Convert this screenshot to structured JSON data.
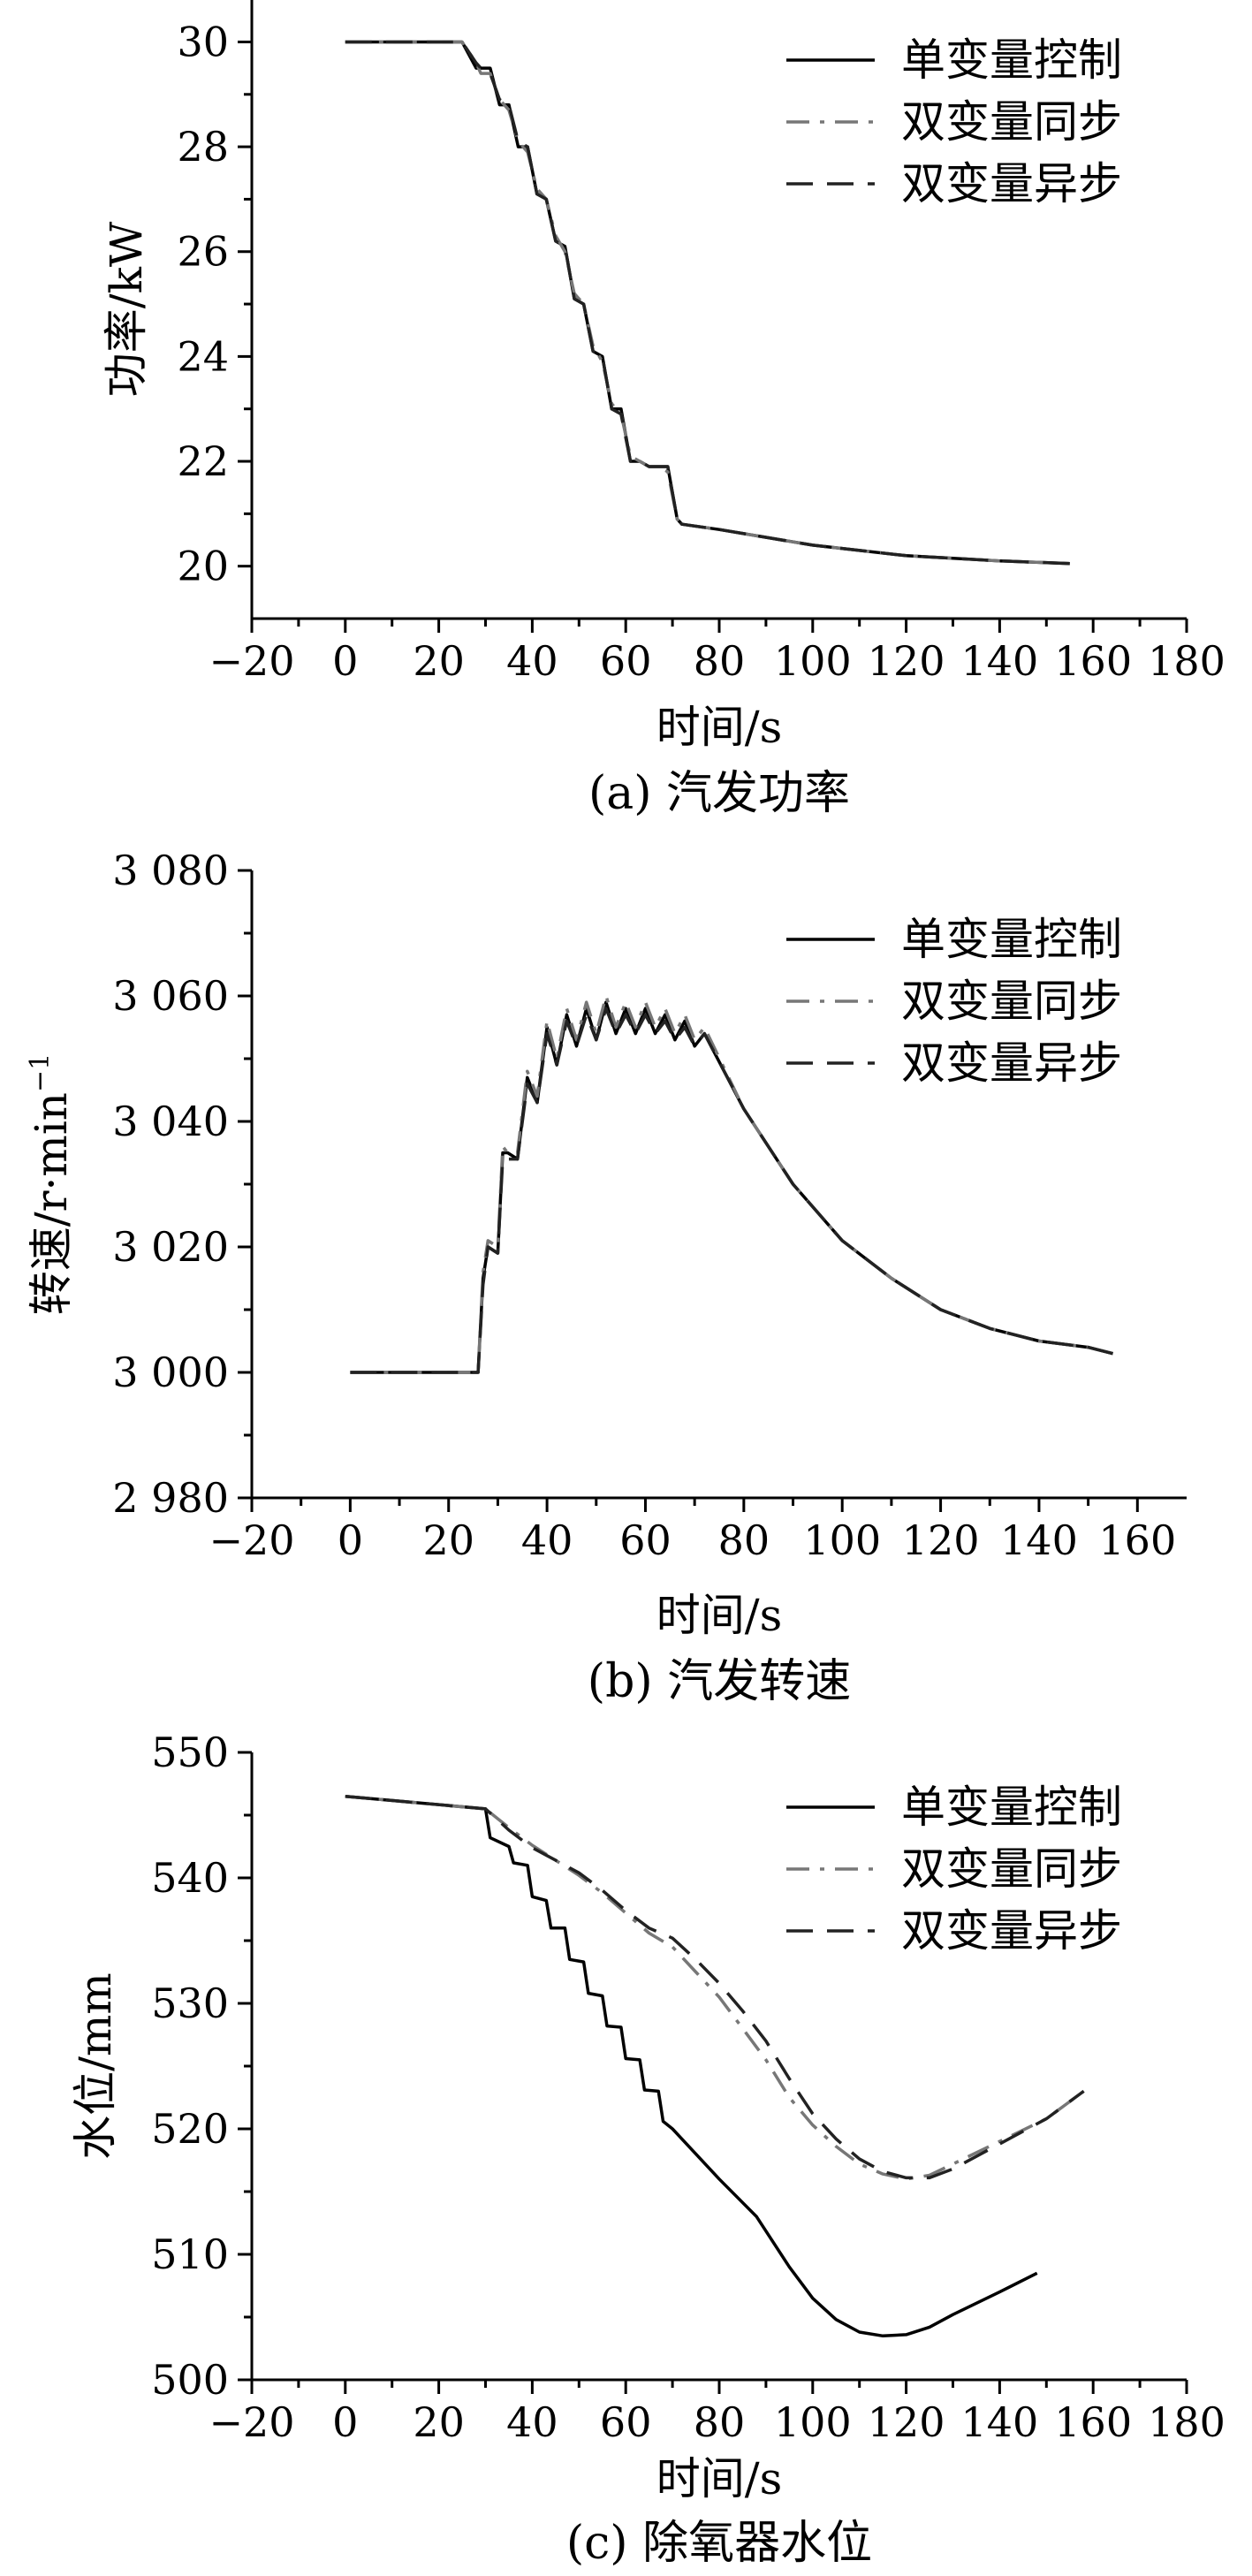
{
  "chart_data": [
    {
      "type": "line",
      "caption": "(a) 汽发功率",
      "xlabel": "时间/s",
      "ylabel": "功率/kW",
      "xlim": [
        -20,
        180
      ],
      "ylim": [
        19,
        30.8
      ],
      "xticks": [
        -20,
        0,
        20,
        40,
        60,
        80,
        100,
        120,
        140,
        160,
        180
      ],
      "xtick_labels": [
        "−20",
        "0",
        "20",
        "40",
        "60",
        "80",
        "100",
        "120",
        "140",
        "160",
        "180"
      ],
      "yticks": [
        20,
        22,
        24,
        26,
        28,
        30
      ],
      "ytick_labels": [
        "20",
        "22",
        "24",
        "26",
        "28",
        "30"
      ],
      "legend_position": "top-right",
      "series": [
        {
          "name": "单变量控制",
          "color": "#000000",
          "dash": "solid",
          "x": [
            0,
            25,
            28,
            29,
            31,
            33,
            35,
            37,
            39,
            41,
            43,
            45,
            47,
            49,
            51,
            53,
            55,
            57,
            59,
            61,
            63,
            65,
            67,
            69,
            71,
            72,
            80,
            100,
            120,
            140,
            155
          ],
          "y": [
            30,
            30,
            29.5,
            29.5,
            29.5,
            28.8,
            28.8,
            28.0,
            28.0,
            27.1,
            27.0,
            26.2,
            26.1,
            25.1,
            25.0,
            24.1,
            24.0,
            23.0,
            23.0,
            22.0,
            22.0,
            21.9,
            21.9,
            21.9,
            20.9,
            20.8,
            20.7,
            20.4,
            20.2,
            20.1,
            20.05
          ]
        },
        {
          "name": "双变量同步",
          "color": "#777777",
          "dash": "dashdot",
          "x": [
            0,
            25,
            28,
            29,
            31,
            33,
            35,
            37,
            39,
            41,
            43,
            45,
            47,
            49,
            51,
            53,
            55,
            57,
            59,
            61,
            63,
            65,
            67,
            69,
            71,
            72,
            80,
            100,
            120,
            140,
            155
          ],
          "y": [
            30,
            30,
            29.6,
            29.4,
            29.4,
            28.9,
            28.7,
            28.1,
            27.9,
            27.2,
            27.0,
            26.3,
            26.0,
            25.2,
            25.0,
            24.2,
            23.9,
            23.1,
            22.9,
            22.1,
            22.0,
            21.9,
            21.9,
            21.8,
            20.9,
            20.8,
            20.7,
            20.4,
            20.2,
            20.1,
            20.05
          ]
        },
        {
          "name": "双变量异步",
          "color": "#222222",
          "dash": "dashed",
          "x": [
            0,
            25,
            28,
            29,
            31,
            33,
            35,
            37,
            39,
            41,
            43,
            45,
            47,
            49,
            51,
            53,
            55,
            57,
            59,
            61,
            63,
            65,
            67,
            69,
            71,
            72,
            80,
            100,
            120,
            140,
            155
          ],
          "y": [
            30,
            30,
            29.6,
            29.5,
            29.4,
            28.9,
            28.8,
            28.1,
            28.0,
            27.1,
            27.0,
            26.2,
            26.1,
            25.1,
            25.0,
            24.1,
            24.0,
            23.0,
            22.9,
            22.0,
            22.0,
            21.9,
            21.9,
            21.9,
            20.9,
            20.8,
            20.7,
            20.4,
            20.2,
            20.1,
            20.05
          ]
        }
      ]
    },
    {
      "type": "line",
      "caption": "(b) 汽发转速",
      "xlabel": "时间/s",
      "ylabel": "转速/r·min",
      "ylabel_sup": "−1",
      "xlim": [
        -20,
        170
      ],
      "ylim": [
        2980,
        3080
      ],
      "xticks": [
        -20,
        0,
        20,
        40,
        60,
        80,
        100,
        120,
        140,
        160
      ],
      "xtick_labels": [
        "−20",
        "0",
        "20",
        "40",
        "60",
        "80",
        "100",
        "120",
        "140",
        "160"
      ],
      "yticks": [
        2980,
        3000,
        3020,
        3040,
        3060,
        3080
      ],
      "ytick_labels": [
        "2 980",
        "3 000",
        "3 020",
        "3 040",
        "3 060",
        "3 080"
      ],
      "legend_position": "top-right",
      "series": [
        {
          "name": "单变量控制",
          "color": "#000000",
          "dash": "solid",
          "x": [
            0,
            26,
            27,
            28,
            30,
            31,
            32,
            34,
            36,
            38,
            40,
            42,
            44,
            46,
            48,
            50,
            52,
            54,
            56,
            58,
            60,
            62,
            64,
            66,
            68,
            70,
            72,
            80,
            90,
            100,
            110,
            120,
            130,
            140,
            150,
            155
          ],
          "y": [
            3000,
            3000,
            3015,
            3020,
            3019,
            3035,
            3035,
            3034,
            3047,
            3043,
            3055,
            3049,
            3057,
            3052,
            3058,
            3053,
            3059,
            3054,
            3058,
            3054,
            3058,
            3054,
            3057,
            3053,
            3056,
            3052,
            3054,
            3042,
            3030,
            3021,
            3015,
            3010,
            3007,
            3005,
            3004,
            3003
          ]
        },
        {
          "name": "双变量同步",
          "color": "#777777",
          "dash": "dashdot",
          "x": [
            0,
            26,
            27,
            28,
            30,
            31,
            32,
            34,
            36,
            38,
            40,
            42,
            44,
            46,
            48,
            50,
            52,
            54,
            56,
            58,
            60,
            62,
            64,
            66,
            68,
            70,
            72,
            80,
            90,
            100,
            110,
            120,
            130,
            140,
            150,
            155
          ],
          "y": [
            3000,
            3000,
            3016,
            3021,
            3020,
            3036,
            3035,
            3035,
            3048,
            3044,
            3056,
            3050,
            3058,
            3053,
            3059,
            3054,
            3060,
            3055,
            3059,
            3055,
            3059,
            3055,
            3058,
            3054,
            3057,
            3053,
            3055,
            3042,
            3030,
            3021,
            3015,
            3010,
            3007,
            3005,
            3004,
            3003
          ]
        },
        {
          "name": "双变量异步",
          "color": "#222222",
          "dash": "dashed",
          "x": [
            0,
            26,
            27,
            28,
            30,
            31,
            32,
            34,
            36,
            38,
            40,
            42,
            44,
            46,
            48,
            50,
            52,
            54,
            56,
            58,
            60,
            62,
            64,
            66,
            68,
            70,
            72,
            80,
            90,
            100,
            110,
            120,
            130,
            140,
            150,
            155
          ],
          "y": [
            3000,
            3000,
            3014,
            3020,
            3019,
            3034,
            3034,
            3034,
            3046,
            3043,
            3054,
            3049,
            3056,
            3052,
            3057,
            3053,
            3058,
            3054,
            3057,
            3054,
            3057,
            3054,
            3056,
            3053,
            3055,
            3052,
            3054,
            3042,
            3030,
            3021,
            3015,
            3010,
            3007,
            3005,
            3004,
            3003
          ]
        }
      ]
    },
    {
      "type": "line",
      "caption": "(c) 除氧器水位",
      "xlabel": "时间/s",
      "ylabel": "水位/mm",
      "xlim": [
        -20,
        180
      ],
      "ylim": [
        500,
        550
      ],
      "xticks": [
        -20,
        0,
        20,
        40,
        60,
        80,
        100,
        120,
        140,
        160,
        180
      ],
      "xtick_labels": [
        "−20",
        "0",
        "20",
        "40",
        "60",
        "80",
        "100",
        "120",
        "140",
        "160",
        "180"
      ],
      "yticks": [
        500,
        510,
        520,
        530,
        540,
        550
      ],
      "ytick_labels": [
        "500",
        "510",
        "520",
        "530",
        "540",
        "550"
      ],
      "legend_position": "top-right",
      "series": [
        {
          "name": "单变量控制",
          "color": "#000000",
          "dash": "solid",
          "x": [
            0,
            30,
            31,
            35,
            36,
            39,
            40,
            43,
            44,
            47,
            48,
            51,
            52,
            55,
            56,
            59,
            60,
            63,
            64,
            67,
            68,
            70,
            80,
            88,
            95,
            100,
            105,
            110,
            115,
            120,
            125,
            130,
            140,
            148
          ],
          "y": [
            546.5,
            545.5,
            543.2,
            542.5,
            541.2,
            541.0,
            538.5,
            538.2,
            536.0,
            536.0,
            533.5,
            533.3,
            530.8,
            530.6,
            528.2,
            528.1,
            525.6,
            525.5,
            523.1,
            523.0,
            520.6,
            520.0,
            516.0,
            513.0,
            509.0,
            506.5,
            504.8,
            503.8,
            503.5,
            503.6,
            504.2,
            505.2,
            507.0,
            508.5
          ]
        },
        {
          "name": "双变量同步",
          "color": "#777777",
          "dash": "dashdot",
          "x": [
            0,
            30,
            35,
            40,
            45,
            50,
            55,
            60,
            65,
            70,
            75,
            80,
            85,
            90,
            95,
            100,
            105,
            110,
            115,
            120,
            125,
            130,
            140,
            150,
            158
          ],
          "y": [
            546.5,
            545.5,
            544.0,
            542.6,
            541.4,
            540.2,
            538.8,
            537.2,
            535.6,
            534.5,
            532.5,
            530.5,
            528.0,
            525.5,
            522.5,
            520.3,
            518.6,
            517.2,
            516.4,
            516.0,
            516.3,
            517.2,
            519.0,
            520.8,
            523.0
          ]
        },
        {
          "name": "双变量异步",
          "color": "#222222",
          "dash": "dashed",
          "x": [
            0,
            30,
            35,
            40,
            45,
            50,
            55,
            60,
            65,
            70,
            75,
            80,
            85,
            90,
            95,
            100,
            105,
            110,
            115,
            120,
            125,
            130,
            140,
            150,
            158
          ],
          "y": [
            546.5,
            545.5,
            543.8,
            542.4,
            541.4,
            540.4,
            539.0,
            537.4,
            536.0,
            535.2,
            533.5,
            531.6,
            529.4,
            527.0,
            524.0,
            521.2,
            519.2,
            517.6,
            516.6,
            516.1,
            516.1,
            516.8,
            518.8,
            520.8,
            523.0
          ]
        }
      ]
    }
  ]
}
